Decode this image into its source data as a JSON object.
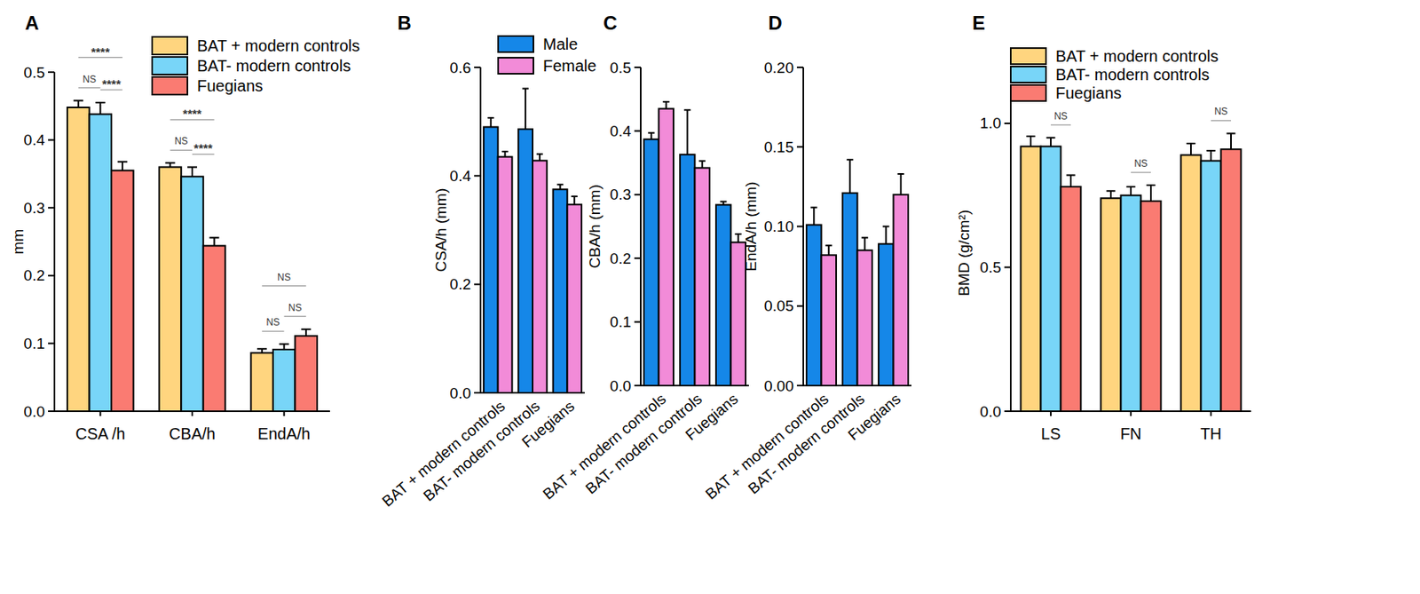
{
  "chart_data": [
    {
      "type": "bar",
      "title": "A",
      "ylabel": "mm",
      "categories": [
        "CSA /h",
        "CBA/h",
        "EndA/h"
      ],
      "series": [
        {
          "name": "BAT + modern controls",
          "color": "#FFD57F",
          "values": [
            0.448,
            0.36,
            0.086
          ],
          "errors": [
            0.01,
            0.006,
            0.006
          ]
        },
        {
          "name": "BAT- modern controls",
          "color": "#78D5F8",
          "values": [
            0.438,
            0.346,
            0.091
          ],
          "errors": [
            0.017,
            0.014,
            0.008
          ]
        },
        {
          "name": "Fuegians",
          "color": "#FA7B72",
          "values": [
            0.355,
            0.244,
            0.111
          ],
          "errors": [
            0.013,
            0.012,
            0.01
          ]
        }
      ],
      "ylim": [
        0,
        0.5
      ],
      "yticks": [
        {
          "value": 0,
          "label": "0.0"
        },
        0.1,
        0.2,
        0.3,
        0.4,
        0.5
      ],
      "legend": "top-right",
      "comparisons": [
        {
          "category": 0,
          "groups": [
            0,
            1
          ],
          "label": "NS"
        },
        {
          "category": 0,
          "groups": [
            0,
            2
          ],
          "label": "****"
        },
        {
          "category": 0,
          "groups": [
            1,
            2
          ],
          "label": "****"
        },
        {
          "category": 1,
          "groups": [
            0,
            1
          ],
          "label": "NS"
        },
        {
          "category": 1,
          "groups": [
            0,
            2
          ],
          "label": "****"
        },
        {
          "category": 1,
          "groups": [
            1,
            2
          ],
          "label": "****"
        },
        {
          "category": 2,
          "groups": [
            0,
            1
          ],
          "label": "NS"
        },
        {
          "category": 2,
          "groups": [
            0,
            2
          ],
          "label": "NS"
        },
        {
          "category": 2,
          "groups": [
            1,
            2
          ],
          "label": "NS"
        }
      ]
    },
    {
      "type": "bar",
      "title": "B",
      "ylabel": "CSA/h (mm)",
      "categories": [
        "BAT + modern controls",
        "BAT- modern controls",
        "Fuegians"
      ],
      "series": [
        {
          "name": "Male",
          "color": "#1587E8",
          "values": [
            0.49,
            0.486,
            0.375
          ],
          "errors": [
            0.017,
            0.075,
            0.009
          ]
        },
        {
          "name": "Female",
          "color": "#F28BD8",
          "values": [
            0.435,
            0.428,
            0.347
          ],
          "errors": [
            0.01,
            0.012,
            0.015
          ]
        }
      ],
      "ylim": [
        0,
        0.6
      ],
      "yticks": [
        {
          "value": 0,
          "label": "0.0"
        },
        0.2,
        0.4,
        0.6
      ],
      "legend": "top-right"
    },
    {
      "type": "bar",
      "title": "C",
      "ylabel": "CBA/h (mm)",
      "categories": [
        "BAT + modern controls",
        "BAT- modern controls",
        "Fuegians"
      ],
      "series": [
        {
          "color": "#1587E8",
          "values": [
            0.387,
            0.363,
            0.284
          ],
          "errors": [
            0.01,
            0.07,
            0.005
          ]
        },
        {
          "color": "#F28BD8",
          "values": [
            0.435,
            0.342,
            0.225
          ],
          "errors": [
            0.011,
            0.011,
            0.013
          ]
        }
      ],
      "ylim": [
        0,
        0.5
      ],
      "yticks": [
        {
          "value": 0,
          "label": "0.0"
        },
        0.1,
        0.2,
        0.3,
        0.4,
        0.5
      ]
    },
    {
      "type": "bar",
      "title": "D",
      "ylabel": "EndA/h (mm)",
      "categories": [
        "BAT + modern controls",
        "BAT- modern controls",
        "Fuegians"
      ],
      "series": [
        {
          "color": "#1587E8",
          "values": [
            0.101,
            0.121,
            0.089
          ],
          "errors": [
            0.011,
            0.021,
            0.011
          ]
        },
        {
          "color": "#F28BD8",
          "values": [
            0.082,
            0.085,
            0.12
          ],
          "errors": [
            0.006,
            0.008,
            0.013
          ]
        }
      ],
      "ylim": [
        0,
        0.2
      ],
      "yticks": [
        {
          "value": 0,
          "label": "0.00"
        },
        0.05,
        {
          "value": 0.1,
          "label": "0.10"
        },
        0.15,
        {
          "value": 0.2,
          "label": "0.20"
        }
      ]
    },
    {
      "type": "bar",
      "title": "E",
      "ylabel": "BMD (g/cm²)",
      "categories": [
        "LS",
        "FN",
        "TH"
      ],
      "series": [
        {
          "name": "BAT + modern controls",
          "color": "#FFD57F",
          "values": [
            0.92,
            0.74,
            0.89
          ],
          "errors": [
            0.035,
            0.025,
            0.04
          ]
        },
        {
          "name": "BAT- modern controls",
          "color": "#78D5F8",
          "values": [
            0.92,
            0.75,
            0.87
          ],
          "errors": [
            0.03,
            0.03,
            0.035
          ]
        },
        {
          "name": "Fuegians",
          "color": "#FA7B72",
          "values": [
            0.78,
            0.73,
            0.91
          ],
          "errors": [
            0.04,
            0.055,
            0.055
          ]
        }
      ],
      "ylim": [
        0,
        1.1
      ],
      "yticks": [
        {
          "value": 0,
          "label": "0.0"
        },
        0.5,
        {
          "value": 1,
          "label": "1.0"
        }
      ],
      "legend": "top-right",
      "comparisons": [
        {
          "category": 0,
          "groups": [
            1,
            2
          ],
          "label": "NS"
        },
        {
          "category": 1,
          "groups": [
            1,
            2
          ],
          "label": "NS"
        },
        {
          "category": 2,
          "groups": [
            1,
            2
          ],
          "label": "NS"
        }
      ]
    }
  ]
}
